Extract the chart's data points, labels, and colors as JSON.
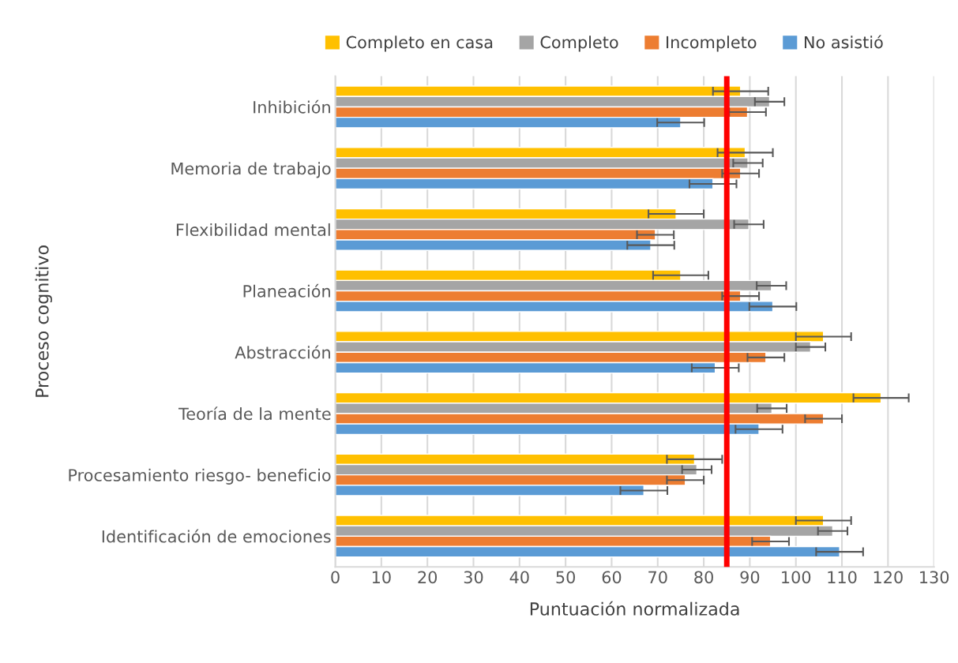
{
  "chart_data": {
    "type": "bar",
    "orientation": "horizontal",
    "xlabel": "Puntuación normalizada",
    "ylabel": "Proceso cognitivo",
    "categories": [
      "Inhibición",
      "Memoria de trabajo",
      "Flexibilidad mental",
      "Planeación",
      "Abstracción",
      "Teoría de la mente",
      "Procesamiento riesgo- beneficio",
      "Identificación de emociones"
    ],
    "series": [
      {
        "name": "Completo en casa",
        "color": "#ffc000",
        "values": [
          88,
          89,
          74,
          75,
          106,
          118.5,
          78,
          106
        ],
        "errors": [
          6,
          6,
          6,
          6,
          6,
          6,
          6,
          6
        ]
      },
      {
        "name": "Completo",
        "color": "#a5a5a5",
        "values": [
          94.3,
          89.6,
          89.8,
          94.7,
          103.2,
          94.8,
          78.5,
          108
        ],
        "errors": [
          3.2,
          3.2,
          3.2,
          3.2,
          3.2,
          3.2,
          3.2,
          3.2
        ]
      },
      {
        "name": "Incompleto",
        "color": "#ed7d31",
        "values": [
          89.5,
          88,
          69.5,
          88,
          93.5,
          106,
          76,
          94.5
        ],
        "errors": [
          4,
          4,
          4,
          4,
          4,
          4,
          4,
          4
        ]
      },
      {
        "name": "No asistió",
        "color": "#5b9bd5",
        "values": [
          75,
          82,
          68.5,
          95,
          82.5,
          92,
          67,
          109.5
        ],
        "errors": [
          5.1,
          5.1,
          5.1,
          5.1,
          5.1,
          5.1,
          5.1,
          5.1
        ]
      }
    ],
    "xlim": [
      0,
      130
    ],
    "xticks": [
      0,
      10,
      20,
      30,
      40,
      50,
      60,
      70,
      80,
      90,
      100,
      110,
      120,
      130
    ],
    "ref_lines": [
      {
        "axis": "x",
        "value": 85,
        "color": "#ff0000"
      }
    ],
    "grid": "x",
    "legend": "top"
  }
}
